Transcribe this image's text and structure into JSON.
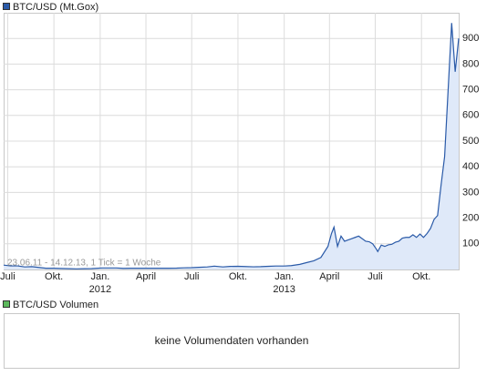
{
  "chart_data": {
    "type": "area",
    "annotation": "23.06.11 - 14.12.13, 1 Tick = 1 Woche",
    "x": [
      "2011-06-23",
      "2011-07-07",
      "2011-07-21",
      "2011-08-04",
      "2011-08-18",
      "2011-09-01",
      "2011-09-15",
      "2011-10-01",
      "2011-10-15",
      "2011-11-01",
      "2011-11-15",
      "2011-12-01",
      "2011-12-15",
      "2012-01-05",
      "2012-01-19",
      "2012-02-02",
      "2012-02-16",
      "2012-03-01",
      "2012-03-15",
      "2012-04-01",
      "2012-04-15",
      "2012-05-01",
      "2012-05-15",
      "2012-06-01",
      "2012-06-15",
      "2012-07-01",
      "2012-07-15",
      "2012-08-01",
      "2012-08-15",
      "2012-09-01",
      "2012-09-15",
      "2012-10-01",
      "2012-10-15",
      "2012-11-01",
      "2012-11-15",
      "2012-12-01",
      "2012-12-15",
      "2013-01-01",
      "2013-01-15",
      "2013-02-01",
      "2013-02-15",
      "2013-03-01",
      "2013-03-15",
      "2013-03-29",
      "2013-04-05",
      "2013-04-10",
      "2013-04-17",
      "2013-04-24",
      "2013-05-01",
      "2013-05-08",
      "2013-05-15",
      "2013-05-22",
      "2013-05-29",
      "2013-06-05",
      "2013-06-12",
      "2013-06-19",
      "2013-06-26",
      "2013-07-03",
      "2013-07-06",
      "2013-07-13",
      "2013-07-20",
      "2013-07-27",
      "2013-08-03",
      "2013-08-10",
      "2013-08-17",
      "2013-08-24",
      "2013-08-31",
      "2013-09-07",
      "2013-09-14",
      "2013-09-21",
      "2013-09-28",
      "2013-10-05",
      "2013-10-12",
      "2013-10-19",
      "2013-10-26",
      "2013-11-02",
      "2013-11-09",
      "2013-11-16",
      "2013-11-23",
      "2013-11-30",
      "2013-12-07",
      "2013-12-14"
    ],
    "series": [
      {
        "name": "BTC/USD (Mt.Gox)",
        "color": "#2a5aa8",
        "fill": "#dfe9f9",
        "values": [
          17,
          14,
          14,
          10,
          11,
          8,
          5,
          5,
          4,
          3,
          2.5,
          3,
          3.5,
          6,
          6,
          6,
          4.5,
          5,
          5,
          5,
          5,
          5,
          5,
          5.3,
          6.5,
          7,
          8.5,
          10,
          13,
          10,
          12,
          12.5,
          11.5,
          10.5,
          11,
          12.5,
          13.5,
          13.5,
          15,
          20,
          27,
          34,
          47,
          90,
          140,
          165,
          90,
          130,
          110,
          115,
          120,
          125,
          130,
          120,
          110,
          108,
          100,
          80,
          70,
          95,
          90,
          96,
          98,
          106,
          110,
          122,
          125,
          125,
          135,
          125,
          138,
          125,
          140,
          160,
          195,
          210,
          330,
          440,
          700,
          960,
          770,
          900
        ]
      }
    ],
    "xlim": [
      "2011-06-23",
      "2013-12-14"
    ],
    "xticks": [
      {
        "value": "2011-07-01",
        "label": "Juli"
      },
      {
        "value": "2011-10-01",
        "label": "Okt."
      },
      {
        "value": "2012-01-01",
        "label": "Jan."
      },
      {
        "value": "2012-04-01",
        "label": "April"
      },
      {
        "value": "2012-07-01",
        "label": "Juli"
      },
      {
        "value": "2012-10-01",
        "label": "Okt."
      },
      {
        "value": "2013-01-01",
        "label": "Jan."
      },
      {
        "value": "2013-04-01",
        "label": "April"
      },
      {
        "value": "2013-07-01",
        "label": "Juli"
      },
      {
        "value": "2013-10-01",
        "label": "Okt."
      }
    ],
    "xyears": [
      {
        "value": "2012-01-01",
        "label": "2012"
      },
      {
        "value": "2013-01-01",
        "label": "2013"
      }
    ],
    "ylim": [
      0,
      1000
    ],
    "yticks": [
      100,
      200,
      300,
      400,
      500,
      600,
      700,
      800,
      900
    ],
    "grid": true
  },
  "volume_panel": {
    "legend": "BTC/USD Volumen",
    "color": "#5cb85c",
    "message": "keine Volumendaten vorhanden"
  }
}
